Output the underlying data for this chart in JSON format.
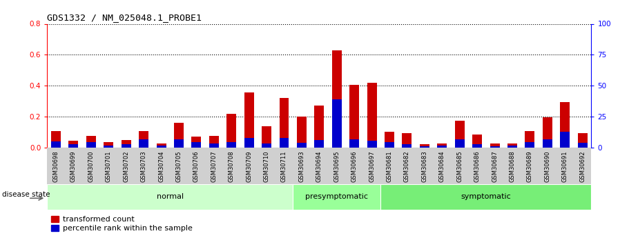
{
  "title": "GDS1332 / NM_025048.1_PROBE1",
  "samples": [
    "GSM30698",
    "GSM30699",
    "GSM30700",
    "GSM30701",
    "GSM30702",
    "GSM30703",
    "GSM30704",
    "GSM30705",
    "GSM30706",
    "GSM30707",
    "GSM30708",
    "GSM30709",
    "GSM30710",
    "GSM30711",
    "GSM30693",
    "GSM30694",
    "GSM30695",
    "GSM30696",
    "GSM30697",
    "GSM30681",
    "GSM30682",
    "GSM30683",
    "GSM30684",
    "GSM30685",
    "GSM30686",
    "GSM30687",
    "GSM30688",
    "GSM30689",
    "GSM30690",
    "GSM30691",
    "GSM30692"
  ],
  "red_values": [
    0.105,
    0.045,
    0.075,
    0.035,
    0.05,
    0.105,
    0.025,
    0.16,
    0.07,
    0.075,
    0.22,
    0.355,
    0.14,
    0.32,
    0.2,
    0.27,
    0.63,
    0.405,
    0.42,
    0.1,
    0.095,
    0.02,
    0.025,
    0.175,
    0.085,
    0.025,
    0.025,
    0.105,
    0.195,
    0.295,
    0.095
  ],
  "blue_values": [
    0.04,
    0.02,
    0.035,
    0.015,
    0.02,
    0.055,
    0.015,
    0.055,
    0.035,
    0.025,
    0.035,
    0.06,
    0.025,
    0.06,
    0.03,
    0.05,
    0.31,
    0.055,
    0.045,
    0.035,
    0.02,
    0.01,
    0.015,
    0.055,
    0.02,
    0.01,
    0.015,
    0.035,
    0.055,
    0.1,
    0.03
  ],
  "groups": [
    {
      "label": "normal",
      "start": 0,
      "end": 14,
      "color": "#ccffcc"
    },
    {
      "label": "presymptomatic",
      "start": 14,
      "end": 19,
      "color": "#99ff99"
    },
    {
      "label": "symptomatic",
      "start": 19,
      "end": 31,
      "color": "#77ee77"
    }
  ],
  "ylim_left": [
    0,
    0.8
  ],
  "ylim_right": [
    0,
    100
  ],
  "yticks_left": [
    0.0,
    0.2,
    0.4,
    0.6,
    0.8
  ],
  "yticks_right": [
    0,
    25,
    50,
    75,
    100
  ],
  "bar_width": 0.55,
  "red_color": "#cc0000",
  "blue_color": "#0000cc",
  "legend_red": "transformed count",
  "legend_blue": "percentile rank within the sample",
  "disease_state_label": "disease state"
}
